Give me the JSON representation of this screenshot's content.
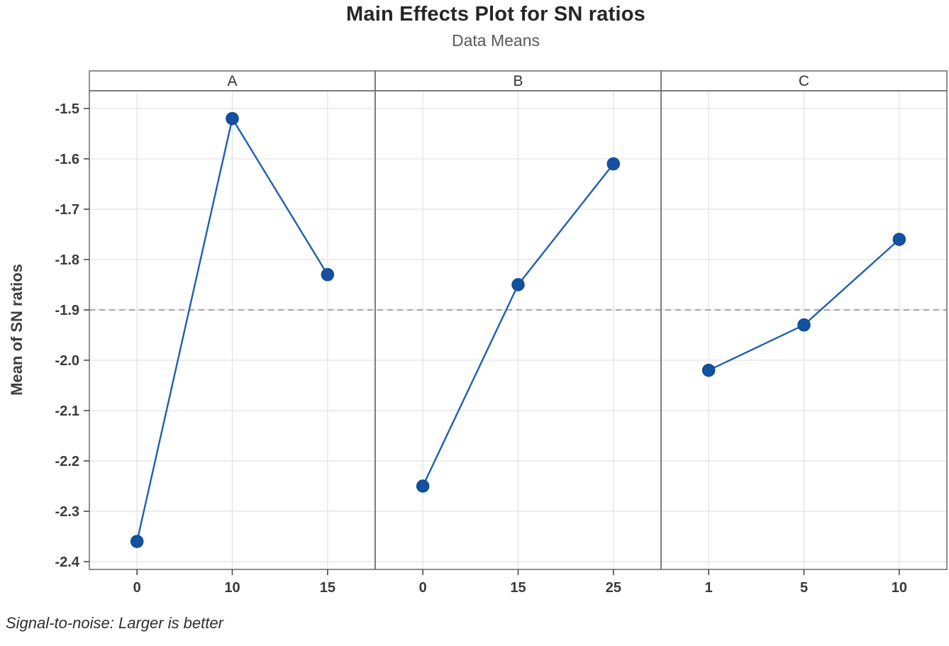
{
  "page": {
    "title": "Main Effects Plot for SN ratios",
    "subtitle": "Data Means",
    "footnote": "Signal-to-noise: Larger is better"
  },
  "chart_data": {
    "type": "line",
    "title": "Main Effects Plot for SN ratios",
    "subtitle": "Data Means",
    "ylabel": "Mean of SN ratios",
    "footnote": "Signal-to-noise: Larger is better",
    "yticks": [
      "-1.5",
      "-1.6",
      "-1.7",
      "-1.8",
      "-1.9",
      "-2.0",
      "-2.1",
      "-2.2",
      "-2.3",
      "-2.4"
    ],
    "ylim_top": -1.465,
    "ylim_bottom": -2.415,
    "reference_line": -1.9,
    "grid": true,
    "legend": "none",
    "panels": [
      {
        "label": "A",
        "categories": [
          "0",
          "10",
          "15"
        ],
        "values": [
          -2.36,
          -1.52,
          -1.83
        ]
      },
      {
        "label": "B",
        "categories": [
          "0",
          "15",
          "25"
        ],
        "values": [
          -2.25,
          -1.85,
          -1.61
        ]
      },
      {
        "label": "C",
        "categories": [
          "1",
          "5",
          "10"
        ],
        "values": [
          -2.02,
          -1.93,
          -1.76
        ]
      }
    ],
    "colors": {
      "line": "#1f5fae",
      "marker_fill": "#14519f",
      "marker_edge": "#0e4a95",
      "grid": "#e2e2e2",
      "panel_border": "#6a6a6a",
      "axis_tick": "#4a4a4a",
      "reference": "#8a8a8a"
    }
  }
}
